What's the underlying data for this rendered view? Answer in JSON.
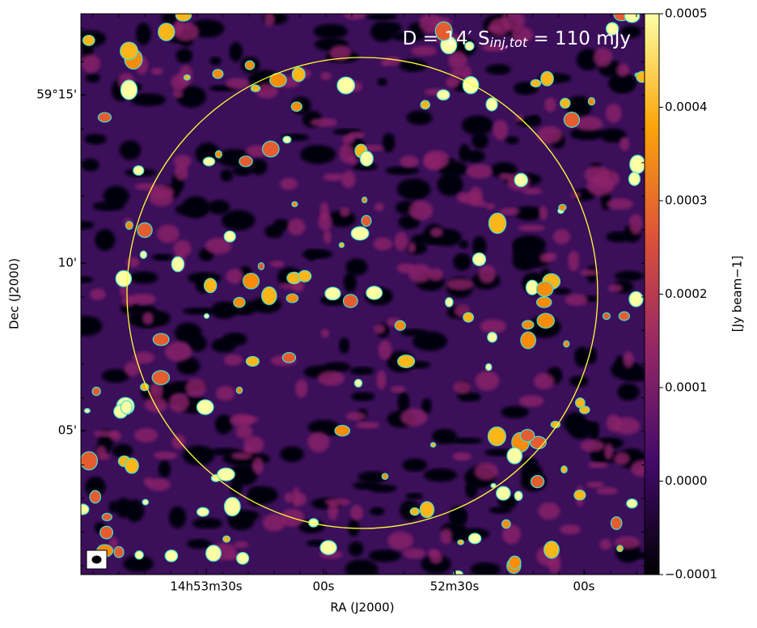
{
  "chart_data": {
    "type": "image",
    "annotation": {
      "main": "D = 14′  S",
      "sub": "inj,tot",
      "rest": " = 110 mJy"
    },
    "xlabel": "RA (J2000)",
    "ylabel": "Dec (J2000)",
    "x_tick_labels": [
      "14h53m30s",
      "00s",
      "52m30s",
      "00s"
    ],
    "y_tick_labels": [
      "59°15'",
      "10'",
      "05'"
    ],
    "colorbar": {
      "label": "[Jy beam−1]",
      "lim": [
        -0.0001,
        0.0005
      ],
      "ticks": [
        {
          "value": -0.0001,
          "label": "−0.0001"
        },
        {
          "value": 0,
          "label": "0.0000"
        },
        0.0001,
        0.0002,
        0.0003,
        0.0004,
        0.0005
      ]
    }
  }
}
